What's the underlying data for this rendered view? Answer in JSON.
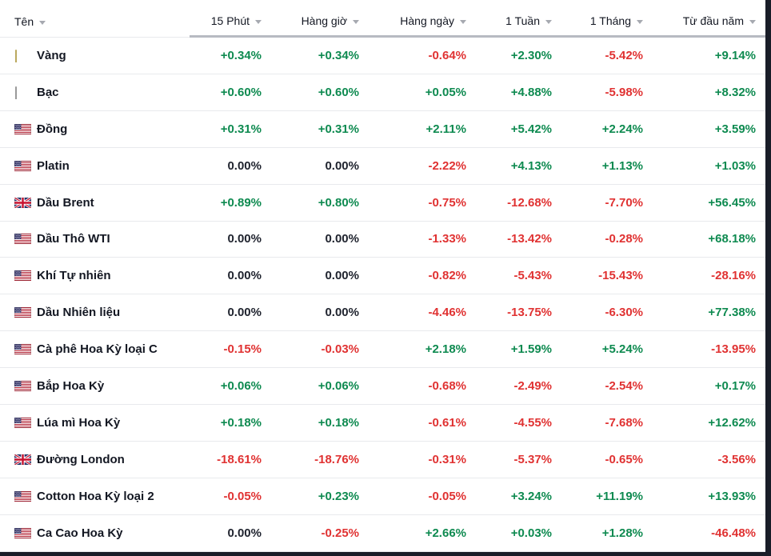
{
  "theme": {
    "positive": "#0e8a50",
    "negative": "#e03232",
    "neutral": "#20242f",
    "header_text": "#131722",
    "arrow": "#a6a9b0",
    "row_divider": "#e8eaed",
    "header_bar": "#b7bac2",
    "frame_dark": "#191d28"
  },
  "table": {
    "columns": [
      {
        "label": "Tên",
        "icon": "sort-arrow"
      },
      {
        "label": "15 Phút",
        "icon": "sort-arrow"
      },
      {
        "label": "Hàng giờ",
        "icon": "sort-arrow"
      },
      {
        "label": "Hàng ngày",
        "icon": "sort-arrow"
      },
      {
        "label": "1 Tuần",
        "icon": "sort-arrow"
      },
      {
        "label": "1 Tháng",
        "icon": "sort-arrow"
      },
      {
        "label": "Từ đầu năm",
        "icon": "sort-arrow"
      }
    ],
    "rows": [
      {
        "icon": "gold-bar",
        "name": "Vàng",
        "values": [
          "+0.34%",
          "+0.34%",
          "-0.64%",
          "+2.30%",
          "-5.42%",
          "+9.14%"
        ]
      },
      {
        "icon": "silver-bar",
        "name": "Bạc",
        "values": [
          "+0.60%",
          "+0.60%",
          "+0.05%",
          "+4.88%",
          "-5.98%",
          "+8.32%"
        ]
      },
      {
        "icon": "us-flag",
        "name": "Đồng",
        "values": [
          "+0.31%",
          "+0.31%",
          "+2.11%",
          "+5.42%",
          "+2.24%",
          "+3.59%"
        ]
      },
      {
        "icon": "us-flag",
        "name": "Platin",
        "values": [
          "0.00%",
          "0.00%",
          "-2.22%",
          "+4.13%",
          "+1.13%",
          "+1.03%"
        ]
      },
      {
        "icon": "uk-flag",
        "name": "Dầu Brent",
        "values": [
          "+0.89%",
          "+0.80%",
          "-0.75%",
          "-12.68%",
          "-7.70%",
          "+56.45%"
        ]
      },
      {
        "icon": "us-flag",
        "name": "Dầu Thô WTI",
        "values": [
          "0.00%",
          "0.00%",
          "-1.33%",
          "-13.42%",
          "-0.28%",
          "+68.18%"
        ]
      },
      {
        "icon": "us-flag",
        "name": "Khí Tự nhiên",
        "values": [
          "0.00%",
          "0.00%",
          "-0.82%",
          "-5.43%",
          "-15.43%",
          "-28.16%"
        ]
      },
      {
        "icon": "us-flag",
        "name": "Dầu Nhiên liệu",
        "values": [
          "0.00%",
          "0.00%",
          "-4.46%",
          "-13.75%",
          "-6.30%",
          "+77.38%"
        ]
      },
      {
        "icon": "us-flag",
        "name": "Cà phê Hoa Kỳ loại C",
        "values": [
          "-0.15%",
          "-0.03%",
          "+2.18%",
          "+1.59%",
          "+5.24%",
          "-13.95%"
        ]
      },
      {
        "icon": "us-flag",
        "name": "Bắp Hoa Kỳ",
        "values": [
          "+0.06%",
          "+0.06%",
          "-0.68%",
          "-2.49%",
          "-2.54%",
          "+0.17%"
        ]
      },
      {
        "icon": "us-flag",
        "name": "Lúa mì Hoa Kỳ",
        "values": [
          "+0.18%",
          "+0.18%",
          "-0.61%",
          "-4.55%",
          "-7.68%",
          "+12.62%"
        ]
      },
      {
        "icon": "uk-flag",
        "name": "Đường London",
        "values": [
          "-18.61%",
          "-18.76%",
          "-0.31%",
          "-5.37%",
          "-0.65%",
          "-3.56%"
        ]
      },
      {
        "icon": "us-flag",
        "name": "Cotton Hoa Kỳ loại 2",
        "values": [
          "-0.05%",
          "+0.23%",
          "-0.05%",
          "+3.24%",
          "+11.19%",
          "+13.93%"
        ]
      },
      {
        "icon": "us-flag",
        "name": "Ca Cao Hoa Kỳ",
        "values": [
          "0.00%",
          "-0.25%",
          "+2.66%",
          "+0.03%",
          "+1.28%",
          "-46.48%"
        ]
      }
    ]
  }
}
